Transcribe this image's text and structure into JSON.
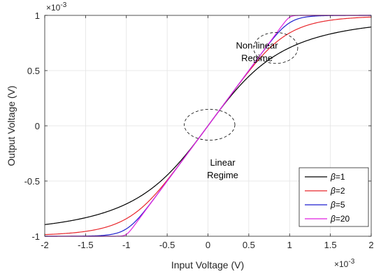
{
  "chart_data": {
    "type": "line",
    "xlabel": "Input Voltage (V)",
    "ylabel": "Output Voltage (V)",
    "x_exponent": "×10",
    "x_exponent_power": "-3",
    "y_exponent": "×10",
    "y_exponent_power": "-3",
    "xlim": [
      -2,
      2
    ],
    "ylim": [
      -1,
      1
    ],
    "xticks": [
      -2,
      -1.5,
      -1,
      -0.5,
      0,
      0.5,
      1,
      1.5,
      2
    ],
    "xtick_labels": [
      "-2",
      "-1.5",
      "-1",
      "-0.5",
      "0",
      "0.5",
      "1",
      "1.5",
      "2"
    ],
    "yticks": [
      -1,
      -0.5,
      0,
      0.5,
      1
    ],
    "ytick_labels": [
      "-1",
      "-0.5",
      "0",
      "0.5",
      "1"
    ],
    "grid": true,
    "legend_position": "bottom-right",
    "series": [
      {
        "name": "β=1",
        "symbol": "β",
        "suffix": "=1",
        "beta": 1,
        "color": "#000000",
        "x": [
          -2,
          -1.75,
          -1.5,
          -1.25,
          -1,
          -0.75,
          -0.5,
          -0.25,
          0,
          0.25,
          0.5,
          0.75,
          1,
          1.25,
          1.5,
          1.75,
          2
        ],
        "y": [
          -0.894,
          -0.867,
          -0.832,
          -0.781,
          -0.707,
          -0.6,
          -0.447,
          -0.243,
          0,
          0.243,
          0.447,
          0.6,
          0.707,
          0.781,
          0.832,
          0.867,
          0.894
        ]
      },
      {
        "name": "β=2",
        "symbol": "β",
        "suffix": "=2",
        "beta": 2,
        "color": "#e8262b",
        "x": [
          -2,
          -1.75,
          -1.5,
          -1.25,
          -1,
          -0.75,
          -0.5,
          -0.25,
          0,
          0.25,
          0.5,
          0.75,
          1,
          1.25,
          1.5,
          1.75,
          2
        ],
        "y": [
          -0.97,
          -0.954,
          -0.928,
          -0.887,
          -0.816,
          -0.703,
          -0.53,
          -0.283,
          0,
          0.283,
          0.53,
          0.703,
          0.816,
          0.887,
          0.928,
          0.954,
          0.97
        ]
      },
      {
        "name": "β=5",
        "symbol": "β",
        "suffix": "=5",
        "beta": 5,
        "color": "#1f1fcf",
        "x": [
          -2,
          -1.75,
          -1.5,
          -1.25,
          -1,
          -0.75,
          -0.5,
          -0.25,
          0,
          0.25,
          0.5,
          0.75,
          1,
          1.25,
          1.5,
          1.75,
          2
        ],
        "y": [
          -0.999,
          -0.998,
          -0.994,
          -0.981,
          -0.94,
          -0.75,
          -0.5,
          -0.25,
          0,
          0.25,
          0.5,
          0.75,
          0.94,
          0.981,
          0.994,
          0.998,
          0.999
        ]
      },
      {
        "name": "β=20",
        "symbol": "β",
        "suffix": "=20",
        "beta": 20,
        "color": "#e020e0",
        "x": [
          -2,
          -1.75,
          -1.5,
          -1.25,
          -1,
          -0.75,
          -0.5,
          -0.25,
          0,
          0.25,
          0.5,
          0.75,
          1,
          1.25,
          1.5,
          1.75,
          2
        ],
        "y": [
          -1,
          -1,
          -1,
          -1,
          -0.983,
          -0.75,
          -0.5,
          -0.25,
          0,
          0.25,
          0.5,
          0.75,
          0.983,
          1,
          1,
          1,
          1
        ]
      }
    ],
    "annotations": [
      {
        "lines": [
          "Non-linear",
          "Regime"
        ],
        "x": 0.6,
        "y": 0.7
      },
      {
        "lines": [
          "Linear",
          "Regime"
        ],
        "x": 0.18,
        "y": -0.36
      }
    ],
    "ellipses": [
      {
        "cx": 0.83,
        "cy": 0.705,
        "rx": 0.27,
        "ry": 0.14
      },
      {
        "cx": 0.02,
        "cy": 0.01,
        "rx": 0.31,
        "ry": 0.14
      }
    ]
  }
}
